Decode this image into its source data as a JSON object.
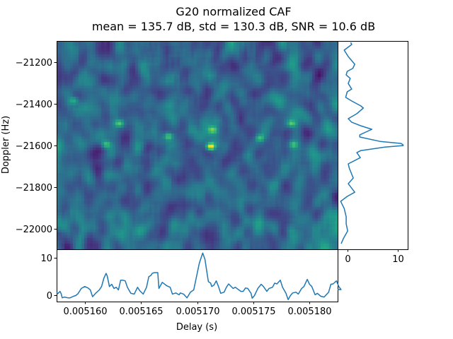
{
  "chart_data": [
    {
      "type": "heatmap",
      "panel": "main",
      "title": "G20 normalized CAF",
      "subtitle": "mean = 135.7 dB, std = 130.3 dB, SNR = 10.6 dB",
      "xlabel": "Delay (s)",
      "ylabel": "Doppler (Hz)",
      "xlim": [
        0.0051575,
        0.0051825
      ],
      "ylim": [
        -22098,
        -21098
      ],
      "yticks": [
        -21200,
        -21400,
        -21600,
        -21800,
        -22000
      ],
      "ytick_labels": [
        "−21200",
        "−21400",
        "−21600",
        "−21800",
        "−22000"
      ],
      "colormap": "viridis",
      "grid": {
        "cols": 100,
        "rows": 74,
        "seed": 20
      },
      "value_range": [
        0,
        11.3
      ],
      "hotspots": [
        {
          "delay": 0.0051711,
          "doppler": -21600,
          "value": 11.3
        },
        {
          "delay": 0.005163,
          "doppler": -21490,
          "value": 6.5
        },
        {
          "delay": 0.0051618,
          "doppler": -21590,
          "value": 5.5
        },
        {
          "delay": 0.0051674,
          "doppler": -21550,
          "value": 6.0
        },
        {
          "delay": 0.0051713,
          "doppler": -21520,
          "value": 6.0
        },
        {
          "delay": 0.0051755,
          "doppler": -21560,
          "value": 5.0
        },
        {
          "delay": 0.0051783,
          "doppler": -21490,
          "value": 5.5
        },
        {
          "delay": 0.0051785,
          "doppler": -21590,
          "value": 5.0
        },
        {
          "delay": 0.005159,
          "doppler": -21380,
          "value": 4.5
        }
      ]
    },
    {
      "type": "line",
      "panel": "bottom",
      "xlabel": "Delay (s)",
      "xlim": [
        0.0051575,
        0.0051825
      ],
      "ylim": [
        -1.6,
        12.3
      ],
      "xticks": [
        0.00516,
        0.005165,
        0.00517,
        0.005175,
        0.00518
      ],
      "xtick_labels": [
        "0.005160",
        "0.005165",
        "0.005170",
        "0.005175",
        "0.005180"
      ],
      "yticks": [
        0,
        10
      ],
      "ytick_labels": [
        "0",
        "10"
      ],
      "color": "#1f77b4",
      "x": [
        0.0051575,
        0.0051576,
        0.0051578,
        0.0051579,
        0.005158,
        0.0051582,
        0.0051585,
        0.0051587,
        0.005159,
        0.0051592,
        0.0051594,
        0.0051597,
        0.00516,
        0.0051603,
        0.0051605,
        0.0051607,
        0.005161,
        0.0051613,
        0.0051615,
        0.0051617,
        0.0051619,
        0.005162,
        0.0051622,
        0.0051624,
        0.0051626,
        0.0051628,
        0.005163,
        0.0051632,
        0.0051634,
        0.0051636,
        0.0051638,
        0.0051641,
        0.0051644,
        0.0051647,
        0.0051649,
        0.0051652,
        0.0051655,
        0.0051657,
        0.0051659,
        0.005166,
        0.0051662,
        0.0051665,
        0.0051666,
        0.0051669,
        0.0051673,
        0.0051676,
        0.0051678,
        0.0051681,
        0.0051684,
        0.0051685,
        0.0051688,
        0.0051691,
        0.0051694,
        0.0051697,
        0.0051699,
        0.0051702,
        0.0051705,
        0.0051707,
        0.0051709,
        0.005171,
        0.0051712,
        0.0051713,
        0.0051715,
        0.0051717,
        0.0051719,
        0.0051721,
        0.0051724,
        0.0051726,
        0.0051728,
        0.0051732,
        0.0051734,
        0.0051739,
        0.0051741,
        0.0051743,
        0.0051745,
        0.0051748,
        0.0051749,
        0.0051751,
        0.0051754,
        0.0051757,
        0.0051759,
        0.0051762,
        0.0051764,
        0.0051767,
        0.0051769,
        0.0051771,
        0.0051774,
        0.0051776,
        0.0051779,
        0.0051781,
        0.0051783,
        0.0051785,
        0.0051788,
        0.005179,
        0.0051793,
        0.0051795,
        0.0051798,
        0.00518,
        0.0051802,
        0.0051805,
        0.0051807,
        0.005181,
        0.0051813,
        0.0051817,
        0.0051819,
        0.0051821,
        0.0051824,
        0.0051826,
        0.0051828,
        0.0051825
      ],
      "y": [
        0.9,
        0.5,
        1.1,
        0.5,
        -0.6,
        -0.4,
        -0.6,
        -0.6,
        -0.2,
        0.0,
        0.5,
        1.9,
        2.4,
        2.0,
        1.5,
        -0.3,
        0.7,
        1.5,
        2.4,
        4.6,
        5.9,
        5.2,
        2.4,
        3.0,
        1.9,
        2.2,
        1.5,
        4.1,
        4.1,
        3.9,
        2.2,
        0.6,
        0.4,
        2.2,
        1.3,
        0.4,
        2.2,
        5.0,
        5.4,
        5.9,
        6.1,
        6.1,
        1.9,
        3.5,
        2.6,
        2.2,
        0.4,
        0.7,
        0.2,
        0.7,
        0.4,
        -0.6,
        0.9,
        1.5,
        4.4,
        8.7,
        11.3,
        9.6,
        5.6,
        3.7,
        3.3,
        2.4,
        2.8,
        3.9,
        2.4,
        0.6,
        0.9,
        2.2,
        3.1,
        1.9,
        2.2,
        1.1,
        1.1,
        2.0,
        1.9,
        0.6,
        -0.7,
        0.0,
        1.9,
        3.0,
        2.4,
        1.1,
        1.9,
        2.2,
        3.3,
        3.1,
        4.1,
        2.2,
        0.6,
        -1.1,
        0.0,
        0.7,
        0.9,
        0.4,
        1.9,
        2.4,
        4.3,
        3.0,
        2.4,
        0.2,
        0.6,
        -0.2,
        -0.4,
        0.9,
        3.0,
        3.1,
        3.9,
        2.4,
        1.6,
        1.6
      ]
    },
    {
      "type": "line",
      "panel": "right",
      "orientation": "vertical",
      "ylabel": "Doppler (Hz)",
      "xlim": [
        -2.0,
        11.9
      ],
      "ylim": [
        -22098,
        -21098
      ],
      "xticks": [
        0,
        10
      ],
      "xtick_labels": [
        "0",
        "10"
      ],
      "color": "#1f77b4",
      "doppler": [
        -21105,
        -21115,
        -21142,
        -21173,
        -21210,
        -21230,
        -21244,
        -21261,
        -21278,
        -21302,
        -21329,
        -21342,
        -21369,
        -21386,
        -21410,
        -21420,
        -21447,
        -21471,
        -21488,
        -21505,
        -21522,
        -21532,
        -21549,
        -21559,
        -21580,
        -21590,
        -21597,
        -21600,
        -21607,
        -21624,
        -21634,
        -21658,
        -21688,
        -21708,
        -21756,
        -21783,
        -21824,
        -21844,
        -21868,
        -21902,
        -21942,
        -21976,
        -22010,
        -22044,
        -22071
      ],
      "value": [
        0.6,
        0.8,
        -0.7,
        0.1,
        1.4,
        1.0,
        -0.1,
        -0.3,
        0.5,
        0.1,
        0.8,
        -0.1,
        -0.4,
        0.8,
        2.6,
        3.1,
        1.8,
        0.1,
        0.8,
        2.6,
        4.8,
        3.9,
        2.4,
        2.4,
        6.4,
        10.6,
        11.0,
        11.0,
        7.4,
        2.6,
        1.8,
        2.5,
        0.1,
        0.3,
        1.1,
        0.1,
        1.4,
        -0.1,
        -1.4,
        -0.7,
        -0.3,
        -0.3,
        0.0,
        -0.8,
        -1.3
      ]
    }
  ]
}
